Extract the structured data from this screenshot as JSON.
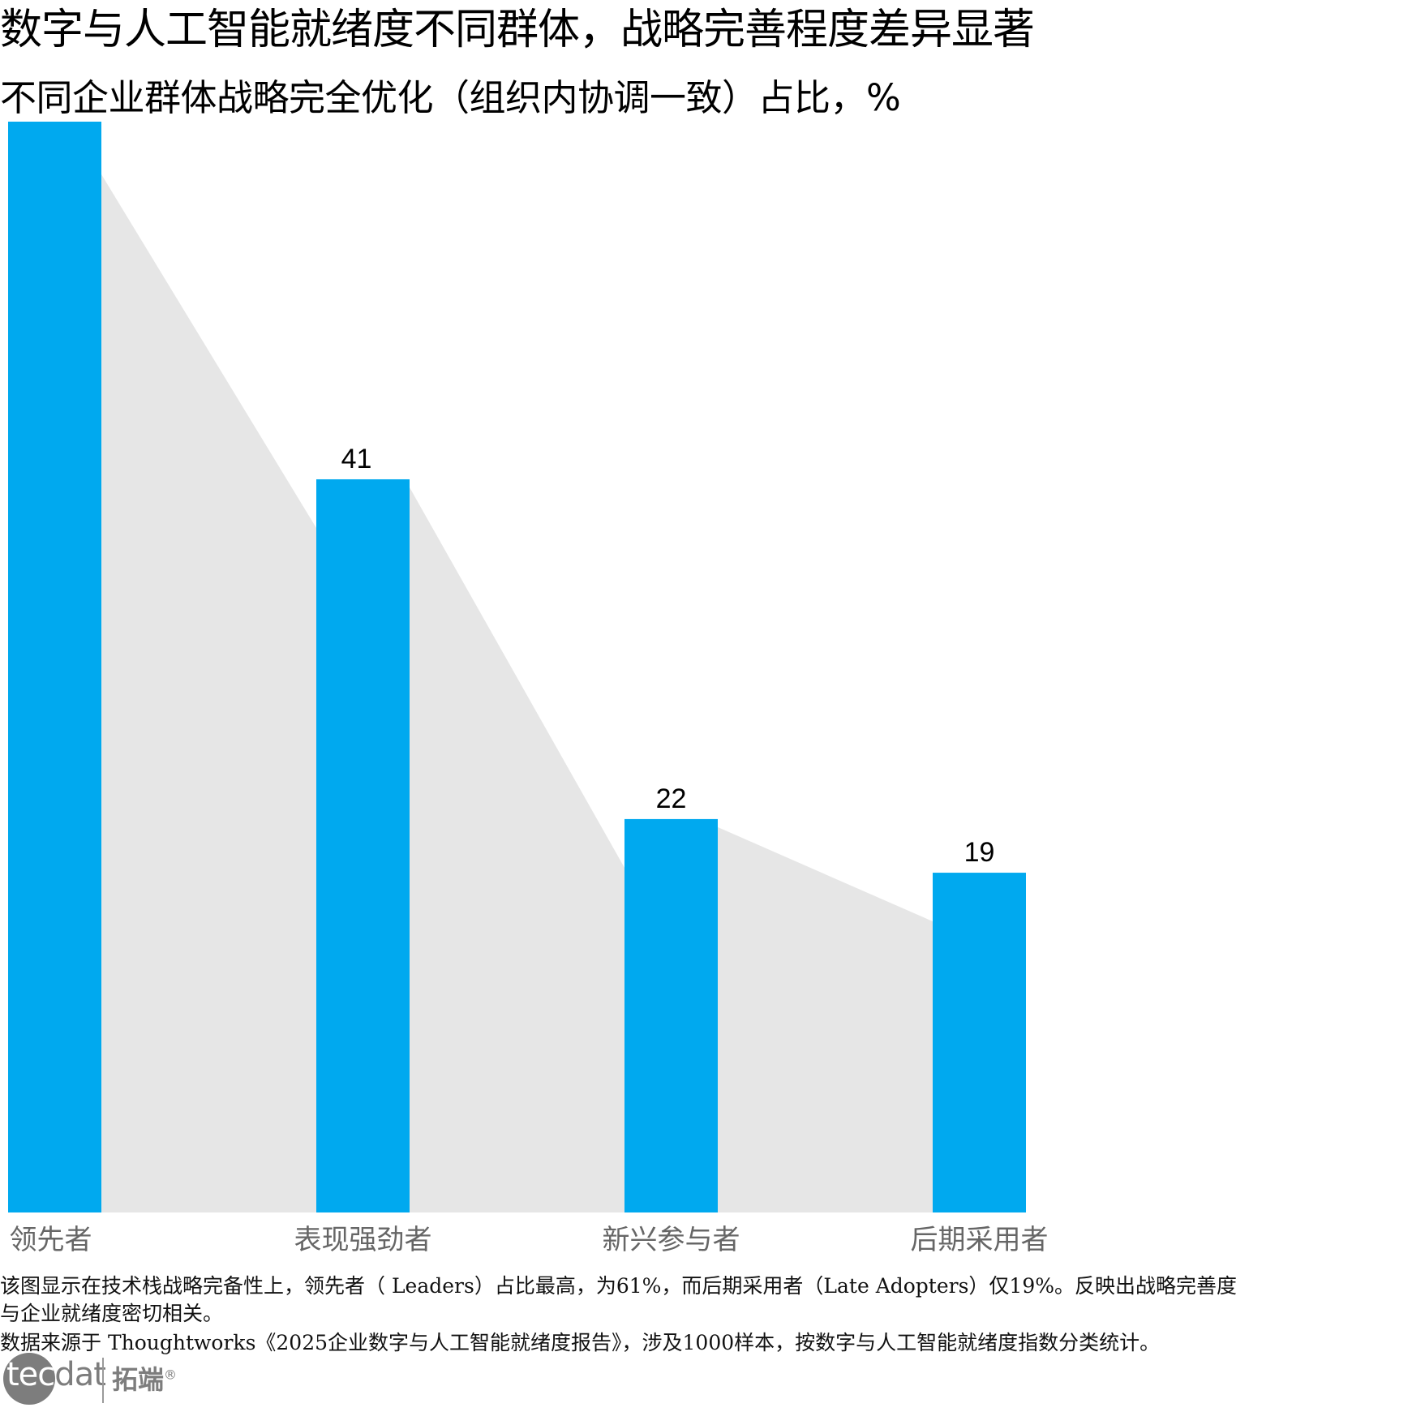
{
  "title": "数字与人工智能就绪度不同群体，战略完善程度差异显著",
  "subtitle": "不同企业群体战略完全优化（组织内协调一致）占比，%",
  "chart_data": {
    "type": "bar",
    "categories": [
      "领先者",
      "表现强劲者",
      "新兴参与者",
      "后期采用者"
    ],
    "values": [
      61,
      41,
      22,
      19
    ],
    "data_labels": [
      "",
      "41",
      "22",
      "19"
    ],
    "ylim": [
      0,
      61
    ],
    "bar_color": "#00a9ef",
    "area_color": "#e6e6e6",
    "label_color": "#666666"
  },
  "notes": {
    "line1": "该图显示在技术栈战略完备性上，领先者（  Leaders）占比最高，为61%，而后期采用者（Late Adopters）仅19%。反映出战略完善度",
    "line2": "与企业就绪度密切相关。",
    "line3": "数据来源于  Thoughtworks《2025企业数字与人工智能就绪度报告》，涉及1000样本，按数字与人工智能就绪度指数分类统计。"
  },
  "logo": {
    "word_tec": "tec",
    "word_dat": "dat",
    "cn": "拓端",
    "reg": "®"
  }
}
